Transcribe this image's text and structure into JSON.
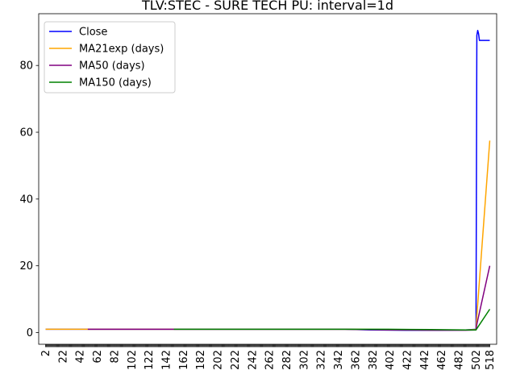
{
  "chart_data": {
    "type": "line",
    "title": "TLV:STEC - SURE TECH PU: interval=1d",
    "xlabel": "",
    "ylabel": "",
    "xlim": [
      -6,
      526
    ],
    "ylim": [
      -3.5,
      95.5
    ],
    "yticks": [
      0,
      20,
      40,
      60,
      80
    ],
    "xtick_labels": [
      "2",
      "22",
      "42",
      "62",
      "82",
      "102",
      "122",
      "142",
      "162",
      "182",
      "202",
      "222",
      "242",
      "262",
      "282",
      "302",
      "322",
      "342",
      "362",
      "382",
      "402",
      "422",
      "442",
      "462",
      "482",
      "502",
      "518"
    ],
    "legend_position": "top-left",
    "grid": false,
    "series": [
      {
        "name": "Close",
        "color": "#0000ff",
        "x": [
          2,
          100,
          200,
          300,
          350,
          380,
          420,
          460,
          490,
          502,
          503,
          504,
          505,
          506,
          508,
          510,
          518
        ],
        "y": [
          1.0,
          1.0,
          1.0,
          1.0,
          1.0,
          0.8,
          0.7,
          0.7,
          0.8,
          1.0,
          89.0,
          90.5,
          89.5,
          87.5,
          87.5,
          87.5,
          87.5
        ]
      },
      {
        "name": "MA21exp (days)",
        "color": "#ffa500",
        "x": [
          2,
          100,
          200,
          300,
          350,
          400,
          450,
          490,
          502,
          503,
          518
        ],
        "y": [
          1.0,
          1.0,
          1.0,
          1.0,
          1.0,
          0.9,
          0.8,
          0.8,
          0.9,
          5.0,
          57.5
        ]
      },
      {
        "name": "MA50 (days)",
        "color": "#800080",
        "x": [
          51,
          100,
          200,
          300,
          350,
          400,
          450,
          490,
          502,
          503,
          518
        ],
        "y": [
          1.0,
          1.0,
          1.0,
          1.0,
          1.0,
          0.8,
          0.7,
          0.7,
          0.8,
          2.5,
          20.0
        ]
      },
      {
        "name": "MA150 (days)",
        "color": "#008000",
        "x": [
          151,
          200,
          300,
          350,
          400,
          450,
          490,
          502,
          503,
          518
        ],
        "y": [
          1.0,
          1.0,
          1.0,
          1.0,
          1.0,
          0.9,
          0.8,
          0.8,
          1.2,
          7.0
        ]
      }
    ]
  }
}
